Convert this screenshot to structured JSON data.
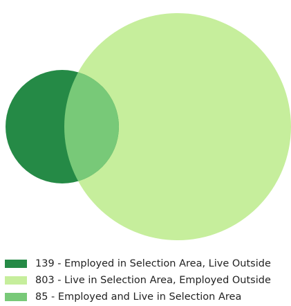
{
  "venn": {
    "sets": [
      {
        "name": "employed-in-selection-live-outside",
        "color": "#258a46"
      },
      {
        "name": "live-in-selection-employed-outside",
        "color": "#c6ee9c"
      },
      {
        "name": "employed-and-live-in-selection",
        "color": "#78c978"
      }
    ]
  },
  "legend": {
    "items": [
      {
        "count": "139",
        "label": "Employed in Selection Area, Live Outside",
        "text": "139 - Employed in Selection Area, Live Outside",
        "color": "#258a46"
      },
      {
        "count": "803",
        "label": "Live in Selection Area, Employed Outside",
        "text": "803 - Live in Selection Area, Employed Outside",
        "color": "#c6ee9c"
      },
      {
        "count": "85",
        "label": "Employed and Live in Selection Area",
        "text": "85 - Employed and Live in Selection Area",
        "color": "#78c978"
      }
    ]
  }
}
